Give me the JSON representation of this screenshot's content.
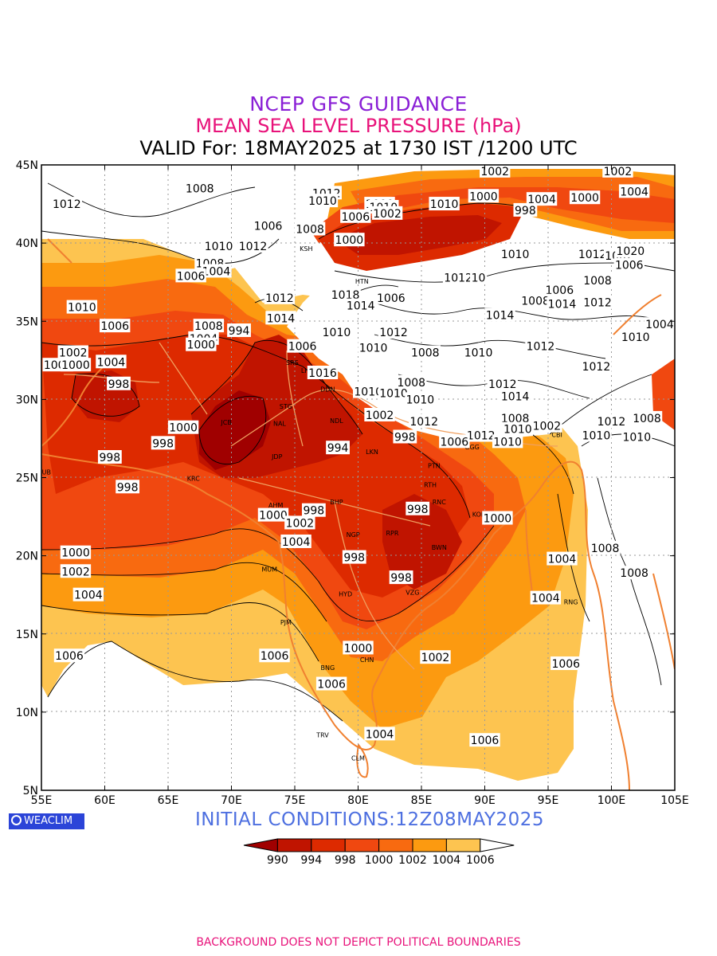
{
  "title": {
    "line1": "NCEP GFS GUIDANCE",
    "line2": "MEAN SEA LEVEL PRESSURE (hPa)",
    "line3": "VALID For: 18MAY2025 at 1730 IST /1200 UTC"
  },
  "axes": {
    "lat_ticks": [
      "45N",
      "40N",
      "35N",
      "30N",
      "25N",
      "20N",
      "15N",
      "10N",
      "5N"
    ],
    "lon_ticks": [
      "55E",
      "60E",
      "65E",
      "70E",
      "75E",
      "80E",
      "85E",
      "90E",
      "95E",
      "100E",
      "105E"
    ]
  },
  "contour_labels": [
    {
      "text": "1012",
      "lon": 57.0,
      "lat": 42.5
    },
    {
      "text": "1008",
      "lon": 67.5,
      "lat": 43.5
    },
    {
      "text": "1012",
      "lon": 77.5,
      "lat": 43.2
    },
    {
      "text": "1010",
      "lon": 77.2,
      "lat": 42.7
    },
    {
      "text": "1000",
      "lon": 81.7,
      "lat": 42.5
    },
    {
      "text": "1010",
      "lon": 82.0,
      "lat": 42.3
    },
    {
      "text": "1002",
      "lon": 82.3,
      "lat": 41.9
    },
    {
      "text": "1010",
      "lon": 86.8,
      "lat": 42.5
    },
    {
      "text": "1000",
      "lon": 89.9,
      "lat": 43.0
    },
    {
      "text": "1002",
      "lon": 90.8,
      "lat": 44.6
    },
    {
      "text": "1002",
      "lon": 100.5,
      "lat": 44.6
    },
    {
      "text": "1004",
      "lon": 101.8,
      "lat": 43.3
    },
    {
      "text": "1000",
      "lon": 97.9,
      "lat": 42.9
    },
    {
      "text": "1004",
      "lon": 94.5,
      "lat": 42.8
    },
    {
      "text": "998",
      "lon": 93.2,
      "lat": 42.1
    },
    {
      "text": "1006",
      "lon": 79.8,
      "lat": 41.7
    },
    {
      "text": "1006",
      "lon": 72.9,
      "lat": 41.1
    },
    {
      "text": "1008",
      "lon": 76.2,
      "lat": 40.9
    },
    {
      "text": "1000",
      "lon": 79.3,
      "lat": 40.2
    },
    {
      "text": "1010",
      "lon": 69.0,
      "lat": 39.8
    },
    {
      "text": "1012",
      "lon": 71.7,
      "lat": 39.8
    },
    {
      "text": "1008",
      "lon": 68.3,
      "lat": 38.7
    },
    {
      "text": "1004",
      "lon": 68.8,
      "lat": 38.2
    },
    {
      "text": "1006",
      "lon": 66.8,
      "lat": 37.9
    },
    {
      "text": "1010",
      "lon": 92.4,
      "lat": 39.3
    },
    {
      "text": "1012",
      "lon": 98.5,
      "lat": 39.3
    },
    {
      "text": "1002",
      "lon": 100.6,
      "lat": 39.2
    },
    {
      "text": "1020",
      "lon": 101.5,
      "lat": 39.5
    },
    {
      "text": "1006",
      "lon": 101.4,
      "lat": 38.6
    },
    {
      "text": "1012",
      "lon": 87.9,
      "lat": 37.8
    },
    {
      "text": "10",
      "lon": 89.5,
      "lat": 37.8
    },
    {
      "text": "1008",
      "lon": 98.9,
      "lat": 37.6
    },
    {
      "text": "1006",
      "lon": 95.9,
      "lat": 37.0
    },
    {
      "text": "1008",
      "lon": 94.0,
      "lat": 36.3
    },
    {
      "text": "1014",
      "lon": 96.1,
      "lat": 36.1
    },
    {
      "text": "1012",
      "lon": 98.9,
      "lat": 36.2
    },
    {
      "text": "1014",
      "lon": 91.2,
      "lat": 35.4
    },
    {
      "text": "1012",
      "lon": 73.8,
      "lat": 36.5
    },
    {
      "text": "1018",
      "lon": 79.0,
      "lat": 36.7
    },
    {
      "text": "1014",
      "lon": 80.2,
      "lat": 36.0
    },
    {
      "text": "1006",
      "lon": 82.6,
      "lat": 36.5
    },
    {
      "text": "1010",
      "lon": 58.2,
      "lat": 35.9
    },
    {
      "text": "1006",
      "lon": 60.8,
      "lat": 34.7
    },
    {
      "text": "1014",
      "lon": 73.9,
      "lat": 35.2
    },
    {
      "text": "1008",
      "lon": 68.2,
      "lat": 34.7
    },
    {
      "text": "994",
      "lon": 70.6,
      "lat": 34.4
    },
    {
      "text": "1004",
      "lon": 67.8,
      "lat": 33.9
    },
    {
      "text": "1000",
      "lon": 67.6,
      "lat": 33.5
    },
    {
      "text": "1006",
      "lon": 75.6,
      "lat": 33.4
    },
    {
      "text": "1010",
      "lon": 78.3,
      "lat": 34.3
    },
    {
      "text": "1012",
      "lon": 82.8,
      "lat": 34.3
    },
    {
      "text": "1010",
      "lon": 81.2,
      "lat": 33.3
    },
    {
      "text": "1008",
      "lon": 85.3,
      "lat": 33.0
    },
    {
      "text": "1010",
      "lon": 89.5,
      "lat": 33.0
    },
    {
      "text": "1012",
      "lon": 94.4,
      "lat": 33.4
    },
    {
      "text": "1012",
      "lon": 98.8,
      "lat": 32.1
    },
    {
      "text": "1010",
      "lon": 101.9,
      "lat": 34.0
    },
    {
      "text": "1004",
      "lon": 103.8,
      "lat": 34.8
    },
    {
      "text": "1002",
      "lon": 57.5,
      "lat": 33.0
    },
    {
      "text": "1004",
      "lon": 56.3,
      "lat": 32.2
    },
    {
      "text": "1000",
      "lon": 57.7,
      "lat": 32.2
    },
    {
      "text": "1004",
      "lon": 60.5,
      "lat": 32.4
    },
    {
      "text": "998",
      "lon": 61.1,
      "lat": 31.0
    },
    {
      "text": "1016",
      "lon": 77.2,
      "lat": 31.7
    },
    {
      "text": "1010",
      "lon": 80.8,
      "lat": 30.5
    },
    {
      "text": "1010",
      "lon": 82.8,
      "lat": 30.4
    },
    {
      "text": "1008",
      "lon": 84.2,
      "lat": 31.1
    },
    {
      "text": "1010",
      "lon": 84.9,
      "lat": 30.0
    },
    {
      "text": "1012",
      "lon": 91.4,
      "lat": 31.0
    },
    {
      "text": "1014",
      "lon": 92.4,
      "lat": 30.2
    },
    {
      "text": "1002",
      "lon": 81.7,
      "lat": 29.0
    },
    {
      "text": "1012",
      "lon": 85.2,
      "lat": 28.6
    },
    {
      "text": "1008",
      "lon": 92.4,
      "lat": 28.8
    },
    {
      "text": "1002",
      "lon": 94.9,
      "lat": 28.3
    },
    {
      "text": "1010",
      "lon": 92.6,
      "lat": 28.1
    },
    {
      "text": "1012",
      "lon": 100.0,
      "lat": 28.6
    },
    {
      "text": "1008",
      "lon": 102.8,
      "lat": 28.8
    },
    {
      "text": "1010",
      "lon": 98.8,
      "lat": 27.7
    },
    {
      "text": "1010",
      "lon": 102.0,
      "lat": 27.6
    },
    {
      "text": "1012",
      "lon": 89.7,
      "lat": 27.7
    },
    {
      "text": "1010",
      "lon": 91.8,
      "lat": 27.3
    },
    {
      "text": "1006",
      "lon": 87.6,
      "lat": 27.3
    },
    {
      "text": "998",
      "lon": 83.7,
      "lat": 27.6
    },
    {
      "text": "1000",
      "lon": 66.2,
      "lat": 28.2
    },
    {
      "text": "998",
      "lon": 64.6,
      "lat": 27.2
    },
    {
      "text": "998",
      "lon": 60.4,
      "lat": 26.3
    },
    {
      "text": "998",
      "lon": 61.8,
      "lat": 24.4
    },
    {
      "text": "994",
      "lon": 78.4,
      "lat": 26.9
    },
    {
      "text": "998",
      "lon": 76.5,
      "lat": 22.9
    },
    {
      "text": "1000",
      "lon": 73.3,
      "lat": 22.6
    },
    {
      "text": "1002",
      "lon": 75.4,
      "lat": 22.1
    },
    {
      "text": "1004",
      "lon": 75.1,
      "lat": 20.9
    },
    {
      "text": "998",
      "lon": 84.7,
      "lat": 23.0
    },
    {
      "text": "1000",
      "lon": 91.0,
      "lat": 22.4
    },
    {
      "text": "998",
      "lon": 79.7,
      "lat": 19.9
    },
    {
      "text": "998",
      "lon": 83.4,
      "lat": 18.6
    },
    {
      "text": "1000",
      "lon": 57.7,
      "lat": 20.2
    },
    {
      "text": "1002",
      "lon": 57.7,
      "lat": 19.0
    },
    {
      "text": "1004",
      "lon": 58.7,
      "lat": 17.5
    },
    {
      "text": "1004",
      "lon": 96.1,
      "lat": 19.8
    },
    {
      "text": "1004",
      "lon": 94.8,
      "lat": 17.3
    },
    {
      "text": "1008",
      "lon": 99.5,
      "lat": 20.5
    },
    {
      "text": "1008",
      "lon": 101.8,
      "lat": 18.9
    },
    {
      "text": "1006",
      "lon": 57.2,
      "lat": 13.6
    },
    {
      "text": "1006",
      "lon": 73.4,
      "lat": 13.6
    },
    {
      "text": "1000",
      "lon": 80.0,
      "lat": 14.1
    },
    {
      "text": "1002",
      "lon": 86.1,
      "lat": 13.5
    },
    {
      "text": "1006",
      "lon": 96.4,
      "lat": 13.1
    },
    {
      "text": "1006",
      "lon": 77.9,
      "lat": 11.8
    },
    {
      "text": "1004",
      "lon": 81.7,
      "lat": 8.6
    },
    {
      "text": "1006",
      "lon": 90.0,
      "lat": 8.2
    }
  ],
  "city_labels": [
    {
      "text": "KSH",
      "lon": 75.9,
      "lat": 39.5
    },
    {
      "text": "HTN",
      "lon": 80.3,
      "lat": 37.4
    },
    {
      "text": "SRS",
      "lon": 74.8,
      "lat": 32.2
    },
    {
      "text": "LHR",
      "lon": 76.0,
      "lat": 31.7
    },
    {
      "text": "DDN",
      "lon": 77.6,
      "lat": 30.5
    },
    {
      "text": "STG",
      "lon": 74.3,
      "lat": 29.4
    },
    {
      "text": "JCB",
      "lon": 69.6,
      "lat": 28.4
    },
    {
      "text": "NAL",
      "lon": 73.8,
      "lat": 28.3
    },
    {
      "text": "NDL",
      "lon": 78.3,
      "lat": 28.5
    },
    {
      "text": "JDP",
      "lon": 73.6,
      "lat": 26.2
    },
    {
      "text": "LKN",
      "lon": 81.1,
      "lat": 26.5
    },
    {
      "text": "PTN",
      "lon": 86.0,
      "lat": 25.6
    },
    {
      "text": "GGG",
      "lon": 89.0,
      "lat": 26.8
    },
    {
      "text": "CBI",
      "lon": 95.7,
      "lat": 27.6
    },
    {
      "text": "DUB",
      "lon": 55.2,
      "lat": 25.2
    },
    {
      "text": "KRC",
      "lon": 67.0,
      "lat": 24.8
    },
    {
      "text": "RTH",
      "lon": 85.7,
      "lat": 24.4
    },
    {
      "text": "RNC",
      "lon": 86.4,
      "lat": 23.3
    },
    {
      "text": "BHP",
      "lon": 78.3,
      "lat": 23.3
    },
    {
      "text": "AHM",
      "lon": 73.5,
      "lat": 23.1
    },
    {
      "text": "KOL",
      "lon": 89.5,
      "lat": 22.5
    },
    {
      "text": "NGP",
      "lon": 79.6,
      "lat": 21.2
    },
    {
      "text": "RPR",
      "lon": 82.7,
      "lat": 21.3
    },
    {
      "text": "BWN",
      "lon": 86.4,
      "lat": 20.4
    },
    {
      "text": "MUM",
      "lon": 73.0,
      "lat": 19.0
    },
    {
      "text": "HYD",
      "lon": 79.0,
      "lat": 17.4
    },
    {
      "text": "VZG",
      "lon": 84.3,
      "lat": 17.5
    },
    {
      "text": "RNG",
      "lon": 96.8,
      "lat": 16.9
    },
    {
      "text": "PJM",
      "lon": 74.3,
      "lat": 15.6
    },
    {
      "text": "BNG",
      "lon": 77.6,
      "lat": 12.7
    },
    {
      "text": "CHN",
      "lon": 80.7,
      "lat": 13.2
    },
    {
      "text": "TRV",
      "lon": 77.2,
      "lat": 8.4
    },
    {
      "text": "CLM",
      "lon": 80.0,
      "lat": 6.9
    }
  ],
  "legend": {
    "colors": [
      "#a00000",
      "#c01400",
      "#dd2a00",
      "#f04810",
      "#f86a10",
      "#fc9a10",
      "#fdc450",
      "#ffffff"
    ],
    "labels": [
      "990",
      "994",
      "998",
      "1000",
      "1002",
      "1004",
      "1006"
    ]
  },
  "logo_text": "WEACLIM",
  "initial_conditions": "INITIAL  CONDITIONS:12Z08MAY2025",
  "footer": "BACKGROUND DOES NOT DEPICT POLITICAL BOUNDARIES"
}
